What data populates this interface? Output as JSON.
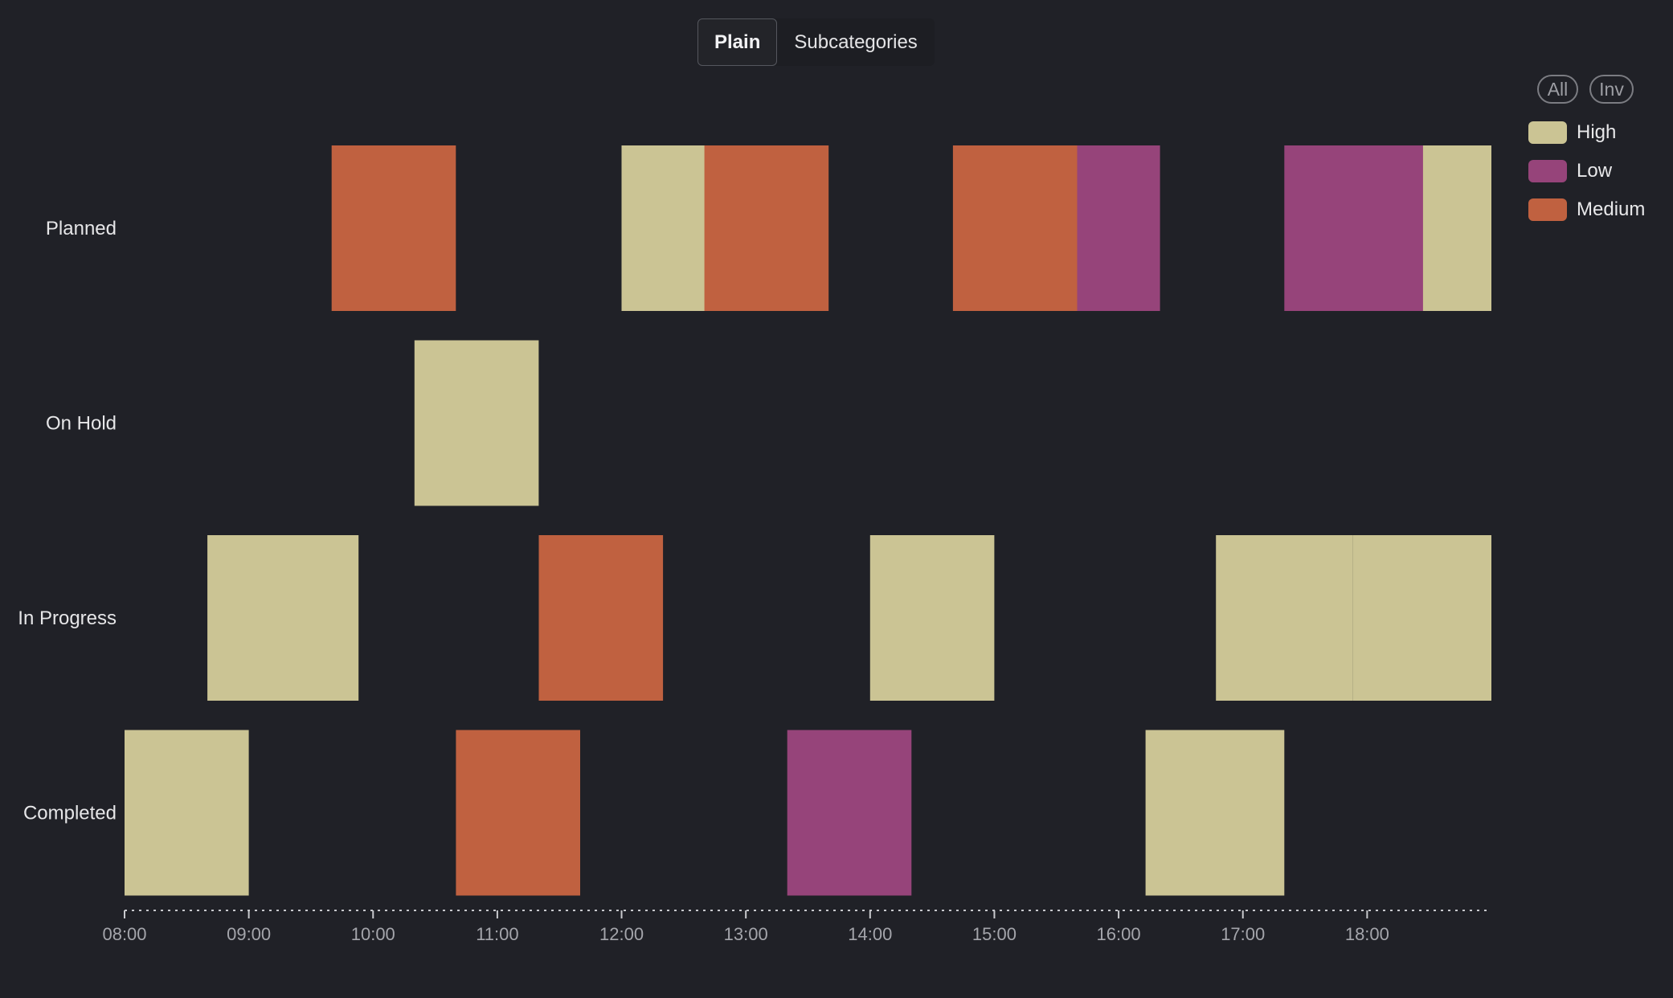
{
  "toggle": {
    "options": [
      "Plain",
      "Subcategories"
    ],
    "active": "Plain"
  },
  "legend": {
    "all_label": "All",
    "inv_label": "Inv",
    "items": [
      {
        "label": "High",
        "color": "#cbc494"
      },
      {
        "label": "Low",
        "color": "#96447a"
      },
      {
        "label": "Medium",
        "color": "#c06140"
      }
    ]
  },
  "chart_data": {
    "type": "timeline",
    "categories": [
      "Planned",
      "On Hold",
      "In Progress",
      "Completed"
    ],
    "x_ticks": [
      "08:00",
      "09:00",
      "10:00",
      "11:00",
      "12:00",
      "13:00",
      "14:00",
      "15:00",
      "16:00",
      "17:00",
      "18:00"
    ],
    "x_range": [
      "08:00",
      "19:00"
    ],
    "colors": {
      "High": "#cbc494",
      "Low": "#96447a",
      "Medium": "#c06140"
    },
    "tasks": [
      {
        "category": "Planned",
        "start": "09:40",
        "end": "10:40",
        "priority": "Medium"
      },
      {
        "category": "Planned",
        "start": "12:00",
        "end": "13:00",
        "priority": "High"
      },
      {
        "category": "Planned",
        "start": "12:40",
        "end": "13:40",
        "priority": "Medium"
      },
      {
        "category": "Planned",
        "start": "14:40",
        "end": "15:40",
        "priority": "Medium"
      },
      {
        "category": "Planned",
        "start": "15:40",
        "end": "16:20",
        "priority": "Low"
      },
      {
        "category": "Planned",
        "start": "17:20",
        "end": "18:27",
        "priority": "Low"
      },
      {
        "category": "Planned",
        "start": "18:27",
        "end": "19:00",
        "priority": "High"
      },
      {
        "category": "On Hold",
        "start": "10:20",
        "end": "11:20",
        "priority": "High"
      },
      {
        "category": "In Progress",
        "start": "08:40",
        "end": "09:53",
        "priority": "High"
      },
      {
        "category": "In Progress",
        "start": "11:20",
        "end": "12:20",
        "priority": "Medium"
      },
      {
        "category": "In Progress",
        "start": "14:00",
        "end": "15:00",
        "priority": "High"
      },
      {
        "category": "In Progress",
        "start": "16:47",
        "end": "17:53",
        "priority": "High"
      },
      {
        "category": "In Progress",
        "start": "17:53",
        "end": "19:00",
        "priority": "High"
      },
      {
        "category": "Completed",
        "start": "08:00",
        "end": "09:00",
        "priority": "High"
      },
      {
        "category": "Completed",
        "start": "10:40",
        "end": "11:40",
        "priority": "Medium"
      },
      {
        "category": "Completed",
        "start": "13:20",
        "end": "14:20",
        "priority": "Low"
      },
      {
        "category": "Completed",
        "start": "16:13",
        "end": "17:20",
        "priority": "High"
      }
    ]
  }
}
